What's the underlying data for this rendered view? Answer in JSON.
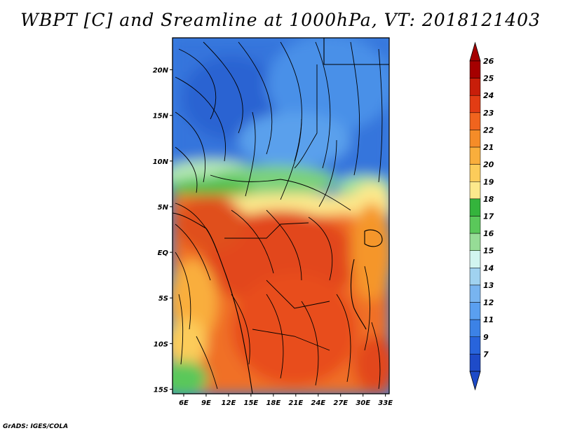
{
  "title": "WBPT [C] and Sreamline at 1000hPa, VT: 2018121403",
  "credit": "GrADS: IGES/COLA",
  "map": {
    "lat_labels": [
      "20N",
      "15N",
      "10N",
      "5N",
      "EQ",
      "5S",
      "10S",
      "15S"
    ],
    "lon_labels": [
      "6E",
      "9E",
      "12E",
      "15E",
      "18E",
      "21E",
      "24E",
      "27E",
      "30E",
      "33E"
    ],
    "lat_range": [
      -15.5,
      23.5
    ],
    "lon_range": [
      4.5,
      33.5
    ],
    "lat_ticks": [
      20,
      15,
      10,
      5,
      0,
      -5,
      -10,
      -15
    ],
    "lon_ticks": [
      6,
      9,
      12,
      15,
      18,
      21,
      24,
      27,
      30,
      33
    ]
  },
  "colorbar": {
    "labels": [
      "26",
      "25",
      "24",
      "23",
      "22",
      "21",
      "20",
      "19",
      "18",
      "17",
      "16",
      "15",
      "14",
      "13",
      "12",
      "11",
      "9",
      "7"
    ],
    "colors": [
      "#a50000",
      "#c81e0a",
      "#e23c14",
      "#f0641e",
      "#f58c28",
      "#f9ae3c",
      "#fccc5a",
      "#fde98c",
      "#34b43c",
      "#5ac85a",
      "#96dc96",
      "#d2f5f0",
      "#a0d2f0",
      "#78b4f0",
      "#5a9ff0",
      "#3c82e6",
      "#2864dc",
      "#1e4bc8"
    ]
  }
}
